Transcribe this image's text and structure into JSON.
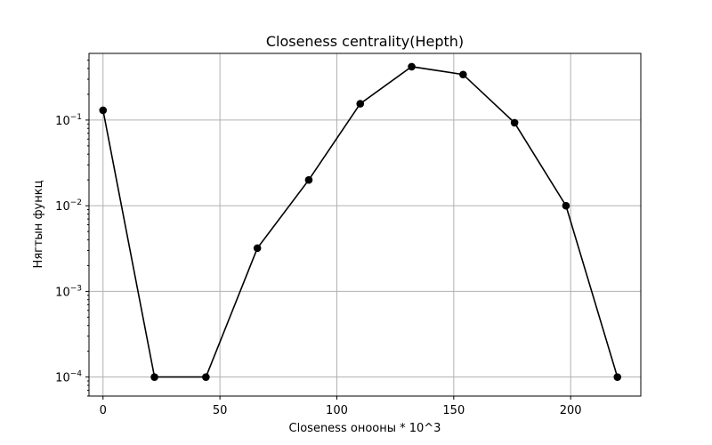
{
  "chart_data": {
    "type": "line",
    "title": "Closeness centrality(Hepth)",
    "xlabel": "Closeness онооны * 10^3",
    "ylabel": "Нягтын функц",
    "xlim": [
      -6,
      230
    ],
    "ylim": [
      6e-05,
      0.6
    ],
    "y_scale": "log",
    "grid": true,
    "x_ticks": [
      0,
      50,
      100,
      150,
      200
    ],
    "y_ticks": [
      {
        "value": 0.0001,
        "base": "10",
        "exp": "−4"
      },
      {
        "value": 0.001,
        "base": "10",
        "exp": "−3"
      },
      {
        "value": 0.01,
        "base": "10",
        "exp": "−2"
      },
      {
        "value": 0.1,
        "base": "10",
        "exp": "−1"
      }
    ],
    "series": [
      {
        "color": "#000000",
        "marker": "circle",
        "x": [
          0,
          22,
          44,
          66,
          88,
          110,
          132,
          154,
          176,
          198,
          220
        ],
        "y": [
          0.13,
          0.0001,
          0.0001,
          0.0032,
          0.02,
          0.155,
          0.42,
          0.34,
          0.093,
          0.01,
          0.0001
        ]
      }
    ]
  }
}
